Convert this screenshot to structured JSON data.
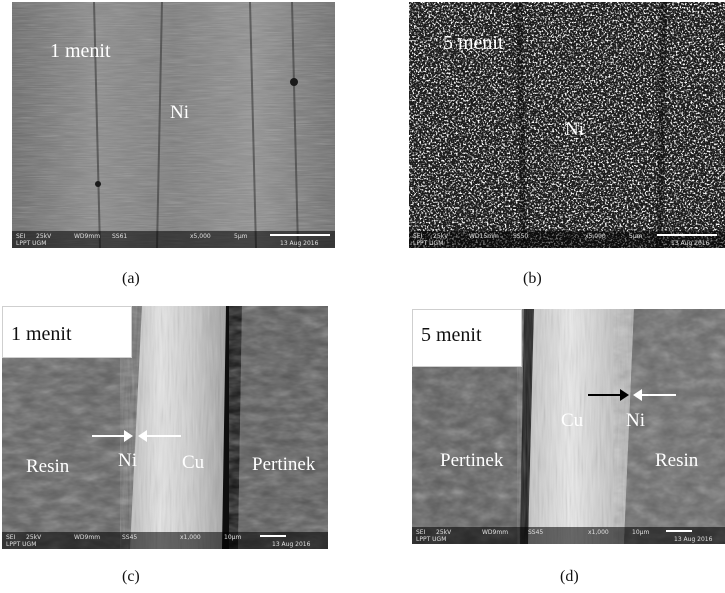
{
  "panels": {
    "a": {
      "caption": "(a)",
      "overlay": "1 menit",
      "label": "Ni",
      "databar": {
        "mode": "SEI",
        "kv": "25kV",
        "wd": "WD9mm",
        "ss": "SS61",
        "mag": "x5,000",
        "scale": "5µm",
        "date": "13 Aug 2016",
        "lab": "LPPT UGM"
      }
    },
    "b": {
      "caption": "(b)",
      "overlay": "5 menit",
      "label": "Ni",
      "databar": {
        "mode": "SEI",
        "kv": "25kV",
        "wd": "WD15mm",
        "ss": "SS50",
        "mag": "x5,000",
        "scale": "5µm",
        "date": "13 Aug 2016",
        "lab": "LPPT UGM"
      }
    },
    "c": {
      "caption": "(c)",
      "overlay": "1 menit",
      "labels": {
        "resin": "Resin",
        "ni": "Ni",
        "cu": "Cu",
        "pertinek": "Pertinek"
      },
      "databar": {
        "mode": "SEI",
        "kv": "25kV",
        "wd": "WD9mm",
        "ss": "SS45",
        "mag": "x1,000",
        "scale": "10µm",
        "date": "13 Aug 2016",
        "lab": "LPPT UGM"
      }
    },
    "d": {
      "caption": "(d)",
      "overlay": "5 menit",
      "labels": {
        "pertinek": "Pertinek",
        "cu": "Cu",
        "ni": "Ni",
        "resin": "Resin"
      },
      "databar": {
        "mode": "SEI",
        "kv": "25kV",
        "wd": "WD9mm",
        "ss": "SS45",
        "mag": "x1,000",
        "scale": "10µm",
        "date": "13 Aug 2016",
        "lab": "LPPT UGM"
      }
    }
  }
}
